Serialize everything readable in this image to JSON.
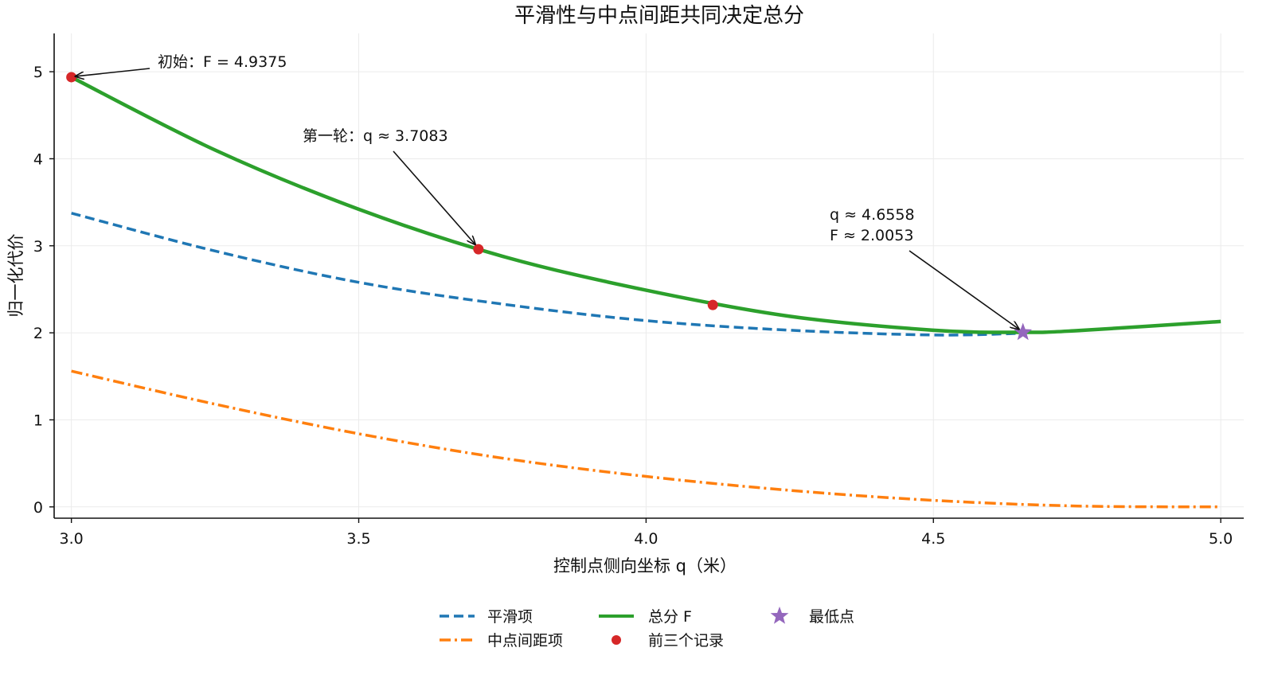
{
  "chart_data": {
    "type": "line",
    "title": "平滑性与中点间距共同决定总分",
    "xlabel": "控制点侧向坐标 q（米）",
    "ylabel": "归一化代价",
    "xlim": [
      2.97,
      5.04
    ],
    "ylim": [
      -0.13,
      5.44
    ],
    "xticks": [
      3.0,
      3.5,
      4.0,
      4.5,
      5.0
    ],
    "xtick_labels": [
      "3.0",
      "3.5",
      "4.0",
      "4.5",
      "5.0"
    ],
    "yticks": [
      0,
      1,
      2,
      3,
      4,
      5
    ],
    "ytick_labels": [
      "0",
      "1",
      "2",
      "3",
      "4",
      "5"
    ],
    "grid": true,
    "legend_position": "bottom-center",
    "series": [
      {
        "name": "平滑项",
        "style": "dashed",
        "color": "#1f77b4",
        "x": [
          3.0,
          3.25,
          3.5,
          3.75,
          4.0,
          4.25,
          4.5,
          4.6558
        ],
        "y": [
          3.375,
          2.94,
          2.58,
          2.33,
          2.14,
          2.03,
          1.975,
          1.995
        ]
      },
      {
        "name": "中点间距项",
        "style": "dashdot",
        "color": "#ff7f0e",
        "x": [
          3.0,
          3.25,
          3.5,
          3.75,
          4.0,
          4.25,
          4.5,
          4.75,
          5.0
        ],
        "y": [
          1.56,
          1.18,
          0.84,
          0.56,
          0.35,
          0.19,
          0.075,
          0.01,
          0.0
        ]
      },
      {
        "name": "总分 F",
        "style": "solid",
        "color": "#2ca02c",
        "x": [
          3.0,
          3.25,
          3.5,
          3.75,
          4.0,
          4.25,
          4.5,
          4.6558,
          4.75,
          5.0
        ],
        "y": [
          4.9375,
          4.1,
          3.42,
          2.88,
          2.49,
          2.19,
          2.03,
          2.0053,
          2.025,
          2.13
        ]
      }
    ],
    "points": {
      "name": "前三个记录",
      "color": "#d62728",
      "x": [
        3.0,
        3.7083,
        4.1161
      ],
      "y": [
        4.9375,
        2.96,
        2.32
      ]
    },
    "minimum": {
      "name": "最低点",
      "color": "#9467bd",
      "x": 4.6558,
      "y": 2.0053
    },
    "annotations": [
      {
        "text": "初始：F = 4.9375",
        "x": 3.0,
        "y": 4.9375
      },
      {
        "text": "第一轮：q ≈ 3.7083",
        "x": 3.7083,
        "y": 2.96
      },
      {
        "text": "q ≈ 4.6558",
        "x": 4.6558,
        "y": 2.0053
      },
      {
        "text": "F ≈ 2.0053",
        "x": 4.6558,
        "y": 2.0053
      }
    ]
  }
}
